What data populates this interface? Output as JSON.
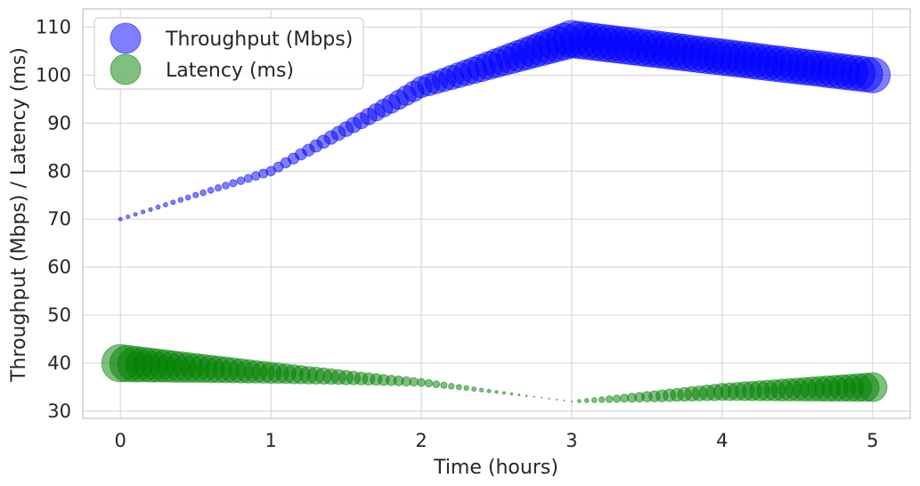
{
  "chart_data": {
    "type": "scatter",
    "title": "",
    "xlabel": "Time (hours)",
    "ylabel": "Throughput (Mbps) / Latency (ms)",
    "xlim": [
      -0.25,
      5.25
    ],
    "ylim": [
      28.5,
      113.8
    ],
    "xticks": [
      0,
      1,
      2,
      3,
      4,
      5
    ],
    "yticks": [
      30,
      40,
      50,
      60,
      70,
      80,
      90,
      100,
      110
    ],
    "grid": true,
    "legend_position": "top-left",
    "marker_size_encoding": "size grows with distance from t = 3 h",
    "time_step_hours": 0.05,
    "series": [
      {
        "name": "Throughput (Mbps)",
        "color": "#0000ff",
        "alpha": 0.5,
        "knots_x": [
          0,
          1,
          2,
          3,
          5
        ],
        "knots_y": [
          70,
          80,
          97.5,
          107.5,
          100
        ]
      },
      {
        "name": "Latency (ms)",
        "color": "#008000",
        "alpha": 0.5,
        "knots_x": [
          0,
          2,
          3,
          4,
          5
        ],
        "knots_y": [
          40,
          36,
          32,
          34,
          35
        ]
      }
    ]
  }
}
